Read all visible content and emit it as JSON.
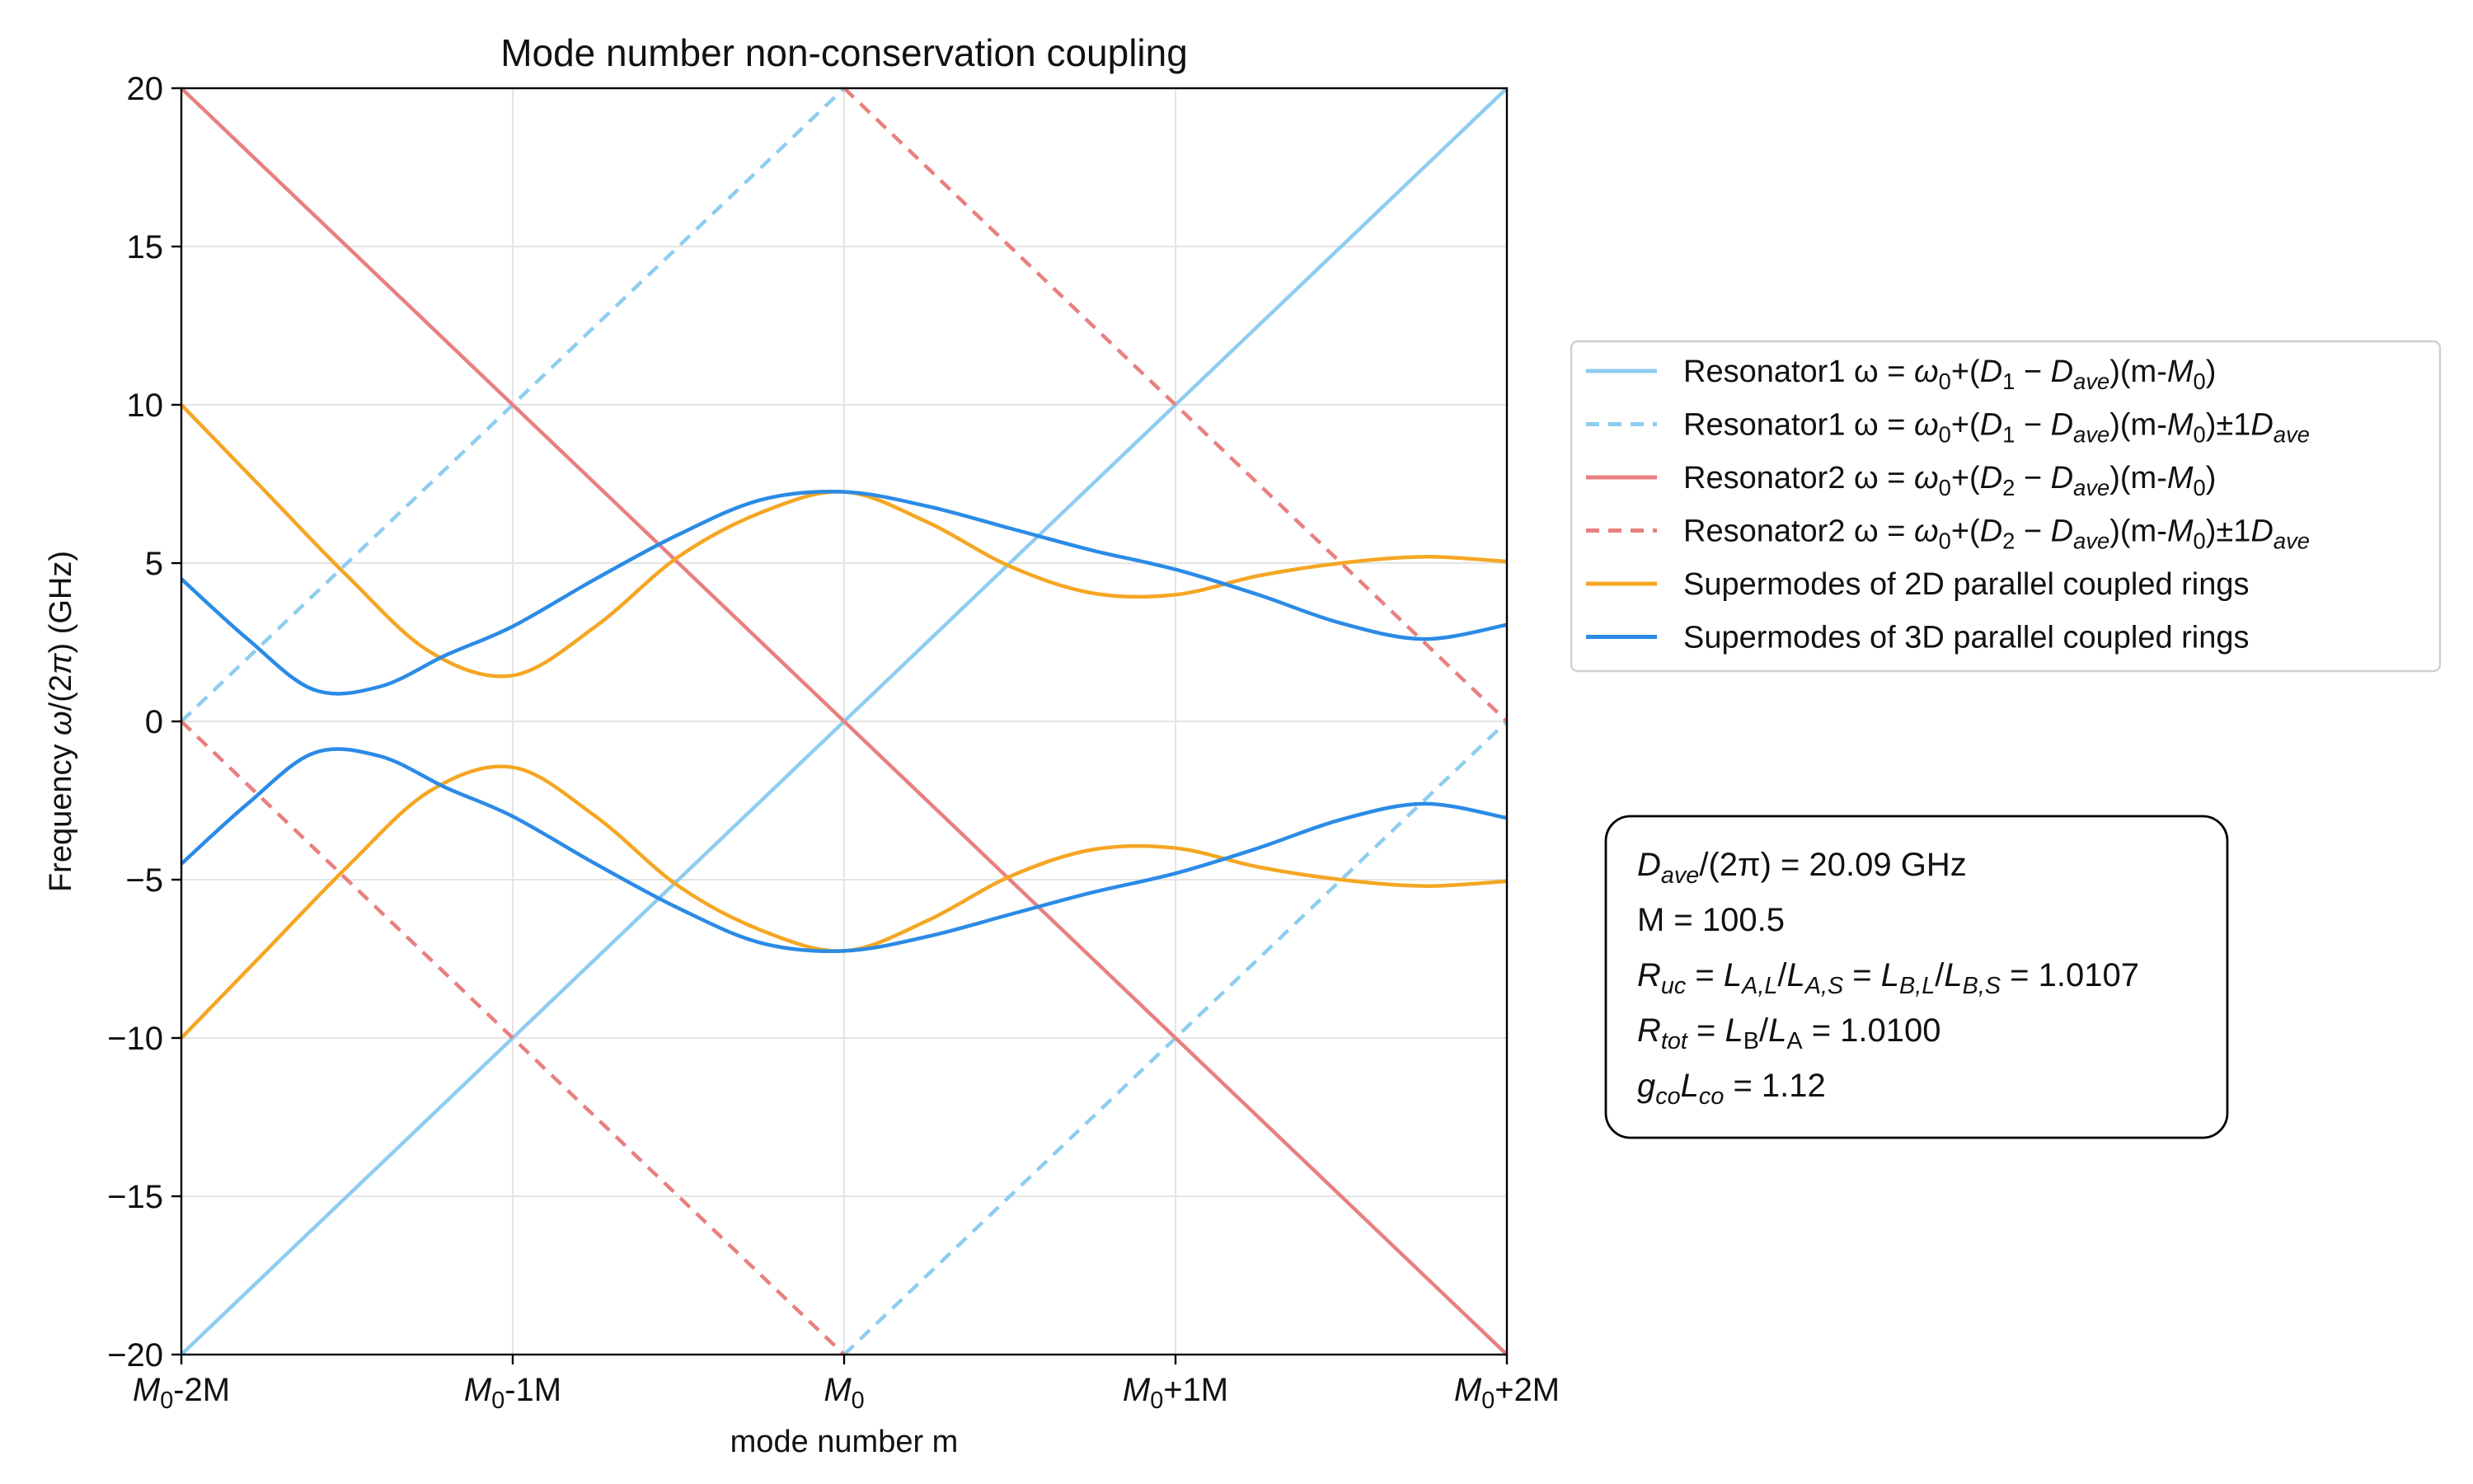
{
  "chart_data": {
    "type": "line",
    "title": "Mode number non-conservation coupling",
    "xlabel": "mode number m",
    "ylabel": "Frequency ω/(2π) (GHz)",
    "xlim": [
      -2,
      2
    ],
    "ylim": [
      -20,
      20
    ],
    "grid": true,
    "legend_position": "right",
    "x_ticks": [
      {
        "value": -2,
        "label": "M0-2M"
      },
      {
        "value": -1,
        "label": "M0-1M"
      },
      {
        "value": 0,
        "label": "M0"
      },
      {
        "value": 1,
        "label": "M0+1M"
      },
      {
        "value": 2,
        "label": "M0+2M"
      }
    ],
    "y_ticks": [
      -20,
      -15,
      -10,
      -5,
      0,
      5,
      10,
      15,
      20
    ],
    "series": [
      {
        "name": "Resonator1 ω = ω0+(D1 − Dave)(m-M0)",
        "color": "#8ecdf0",
        "dash": "solid",
        "points": [
          [
            -2,
            -20
          ],
          [
            2,
            20
          ]
        ]
      },
      {
        "name": "Resonator1 ω = ω0+(D1 − Dave)(m-M0)±1Dave",
        "color": "#8ecdf0",
        "dash": "dashed",
        "segments": [
          [
            [
              -2,
              0
            ],
            [
              0,
              20
            ]
          ],
          [
            [
              0,
              -20
            ],
            [
              2,
              0
            ]
          ]
        ]
      },
      {
        "name": "Resonator2 ω = ω0+(D2 − Dave)(m-M0)",
        "color": "#e88080",
        "dash": "solid",
        "points": [
          [
            -2,
            20
          ],
          [
            2,
            -20
          ]
        ]
      },
      {
        "name": "Resonator2 ω = ω0+(D2 − Dave)(m-M0)±1Dave",
        "color": "#e88080",
        "dash": "dashed",
        "segments": [
          [
            [
              -2,
              0
            ],
            [
              0,
              -20
            ]
          ],
          [
            [
              0,
              20
            ],
            [
              2,
              0
            ]
          ]
        ]
      },
      {
        "name": "Supermodes of 2D parallel coupled rings",
        "color": "#f5a623",
        "dash": "solid",
        "upper": [
          [
            -2.0,
            10.0
          ],
          [
            -1.75,
            7.3
          ],
          [
            -1.5,
            4.6
          ],
          [
            -1.25,
            2.2
          ],
          [
            -1.0,
            1.45
          ],
          [
            -0.75,
            3.0
          ],
          [
            -0.5,
            5.2
          ],
          [
            -0.25,
            6.6
          ],
          [
            0.0,
            7.25
          ],
          [
            0.25,
            6.3
          ],
          [
            0.5,
            4.9
          ],
          [
            0.75,
            4.05
          ],
          [
            1.0,
            4.0
          ],
          [
            1.25,
            4.6
          ],
          [
            1.5,
            5.0
          ],
          [
            1.75,
            5.2
          ],
          [
            2.0,
            5.05
          ]
        ],
        "lower": [
          [
            -2.0,
            -10.0
          ],
          [
            -1.75,
            -7.3
          ],
          [
            -1.5,
            -4.6
          ],
          [
            -1.25,
            -2.2
          ],
          [
            -1.0,
            -1.45
          ],
          [
            -0.75,
            -3.0
          ],
          [
            -0.5,
            -5.2
          ],
          [
            -0.25,
            -6.6
          ],
          [
            0.0,
            -7.25
          ],
          [
            0.25,
            -6.3
          ],
          [
            0.5,
            -4.9
          ],
          [
            0.75,
            -4.05
          ],
          [
            1.0,
            -4.0
          ],
          [
            1.25,
            -4.6
          ],
          [
            1.5,
            -5.0
          ],
          [
            1.75,
            -5.2
          ],
          [
            2.0,
            -5.05
          ]
        ]
      },
      {
        "name": "Supermodes of 3D parallel coupled rings",
        "color": "#2b8be6",
        "dash": "solid",
        "upper": [
          [
            -2.0,
            4.5
          ],
          [
            -1.8,
            2.6
          ],
          [
            -1.6,
            1.0
          ],
          [
            -1.4,
            1.1
          ],
          [
            -1.2,
            2.1
          ],
          [
            -1.0,
            3.0
          ],
          [
            -0.75,
            4.5
          ],
          [
            -0.5,
            5.9
          ],
          [
            -0.25,
            7.0
          ],
          [
            0.0,
            7.25
          ],
          [
            0.25,
            6.8
          ],
          [
            0.5,
            6.1
          ],
          [
            0.75,
            5.4
          ],
          [
            1.0,
            4.8
          ],
          [
            1.25,
            4.0
          ],
          [
            1.5,
            3.1
          ],
          [
            1.75,
            2.6
          ],
          [
            2.0,
            3.05
          ]
        ],
        "lower": [
          [
            -2.0,
            -4.5
          ],
          [
            -1.8,
            -2.6
          ],
          [
            -1.6,
            -1.0
          ],
          [
            -1.4,
            -1.1
          ],
          [
            -1.2,
            -2.1
          ],
          [
            -1.0,
            -3.0
          ],
          [
            -0.75,
            -4.5
          ],
          [
            -0.5,
            -5.9
          ],
          [
            -0.25,
            -7.0
          ],
          [
            0.0,
            -7.25
          ],
          [
            0.25,
            -6.8
          ],
          [
            0.5,
            -6.1
          ],
          [
            0.75,
            -5.4
          ],
          [
            1.0,
            -4.8
          ],
          [
            1.25,
            -4.0
          ],
          [
            1.5,
            -3.1
          ],
          [
            1.75,
            -2.6
          ],
          [
            2.0,
            -3.05
          ]
        ]
      }
    ],
    "annotation": {
      "lines": [
        "Dave/(2π) = 20.09 GHz",
        "M = 100.5",
        "Ruc = LA,L/LA,S = LB,L/LB,S = 1.0107",
        "Rtot = LB/LA = 1.0100",
        "gcoLco = 1.12"
      ]
    }
  }
}
